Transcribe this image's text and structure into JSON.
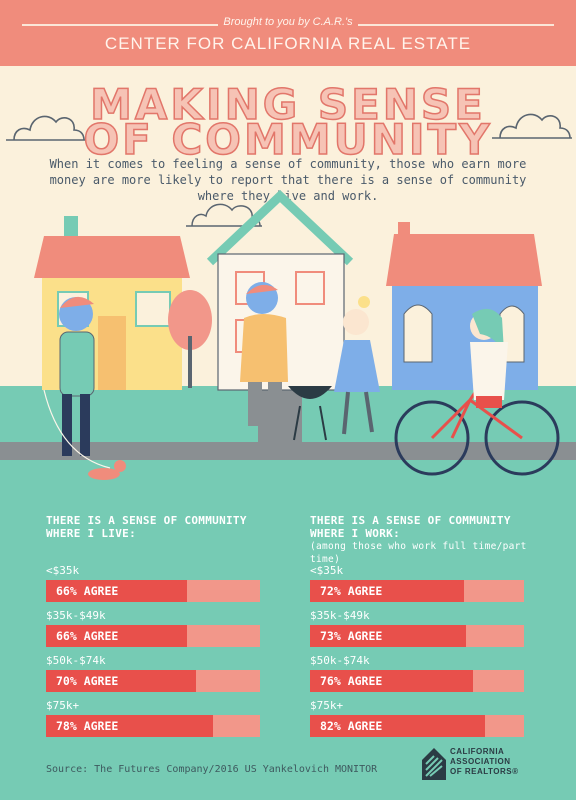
{
  "banner": {
    "brought": "Brought to you by C.A.R.'s",
    "center": "CENTER FOR CALIFORNIA REAL ESTATE"
  },
  "title": {
    "line1": "MAKING SENSE",
    "line2": "OF COMMUNITY"
  },
  "subtitle": "When it comes to feeling a sense of community, those who earn more money are more likely to report that there is a sense of community where they live and work.",
  "colors": {
    "banner": "#f08c7c",
    "background": "#fbf1dc",
    "teal": "#76cbb4",
    "bar_fill": "#e8504b",
    "bar_track": "#f2978a"
  },
  "chart_data": [
    {
      "type": "bar",
      "title": "THERE IS A SENSE OF COMMUNITY WHERE I LIVE:",
      "categories": [
        "<$35k",
        "$35k-$49k",
        "$50k-$74k",
        "$75k+"
      ],
      "values": [
        66,
        66,
        70,
        78
      ],
      "labels": [
        "66% AGREE",
        "66% AGREE",
        "70% AGREE",
        "78% AGREE"
      ],
      "ylim": [
        0,
        100
      ]
    },
    {
      "type": "bar",
      "title": "THERE IS A SENSE OF COMMUNITY WHERE I WORK:",
      "note": "(among those who work full time/part time)",
      "categories": [
        "<$35k",
        "$35k-$49k",
        "$50k-$74k",
        "$75k+"
      ],
      "values": [
        72,
        73,
        76,
        82
      ],
      "labels": [
        "72% AGREE",
        "73% AGREE",
        "76% AGREE",
        "82% AGREE"
      ],
      "ylim": [
        0,
        100
      ]
    }
  ],
  "source": "Source: The Futures Company/2016 US Yankelovich MONITOR",
  "logo": {
    "line1": "CALIFORNIA",
    "line2": "ASSOCIATION",
    "line3": "OF REALTORS®"
  }
}
